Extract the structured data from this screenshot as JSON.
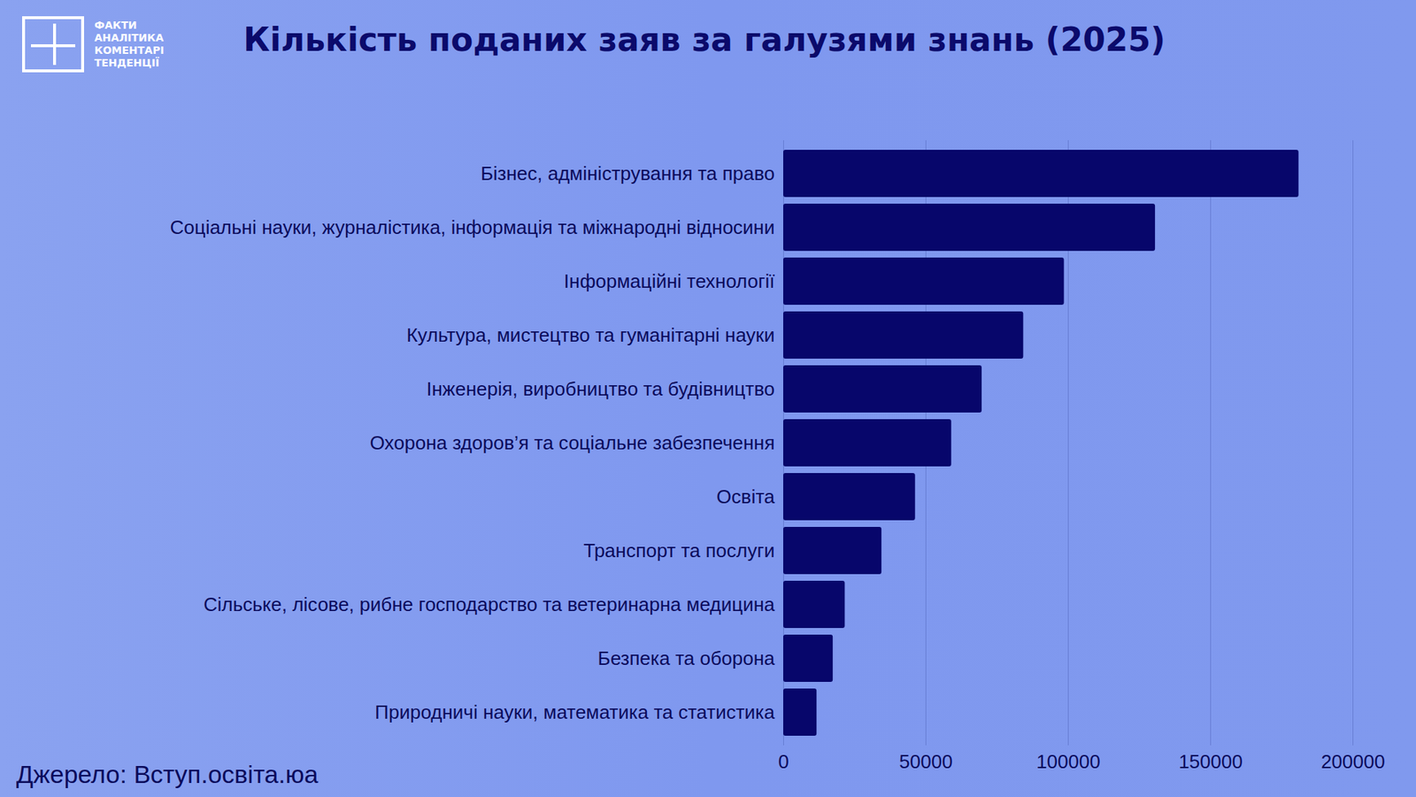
{
  "logo": [
    "ФАКТИ",
    "АНАЛІТИКА",
    "КОМЕНТАРІ",
    "ТЕНДЕНЦІЇ"
  ],
  "chart_data": {
    "type": "bar",
    "orientation": "horizontal",
    "title": "Кількість поданих заяв за галузями знань (2025)",
    "source": "Джерело: Вступ.освіта.юа",
    "categories": [
      "Бізнес, адміністрування та право",
      "Соціальні науки, журналістика, інформація та міжнародні відносини",
      "Інформаційні технології",
      "Культура, мистецтво та гуманітарні науки",
      "Інженерія, виробництво та будівництво",
      "Охорона здоров’я та соціальне забезпечення",
      "Освіта",
      "Транспорт та послуги",
      "Сільське, лісове, рибне господарство та ветеринарна медицина",
      "Безпека та оборона",
      "Природничі науки, математика та статистика"
    ],
    "values": [
      181000,
      130600,
      98600,
      84300,
      69700,
      59000,
      46300,
      34500,
      21600,
      17400,
      11700
    ],
    "color": "#07066b",
    "xlim": [
      0,
      200000
    ],
    "xticks": [
      0,
      50000,
      100000,
      150000,
      200000
    ],
    "grid": true
  }
}
